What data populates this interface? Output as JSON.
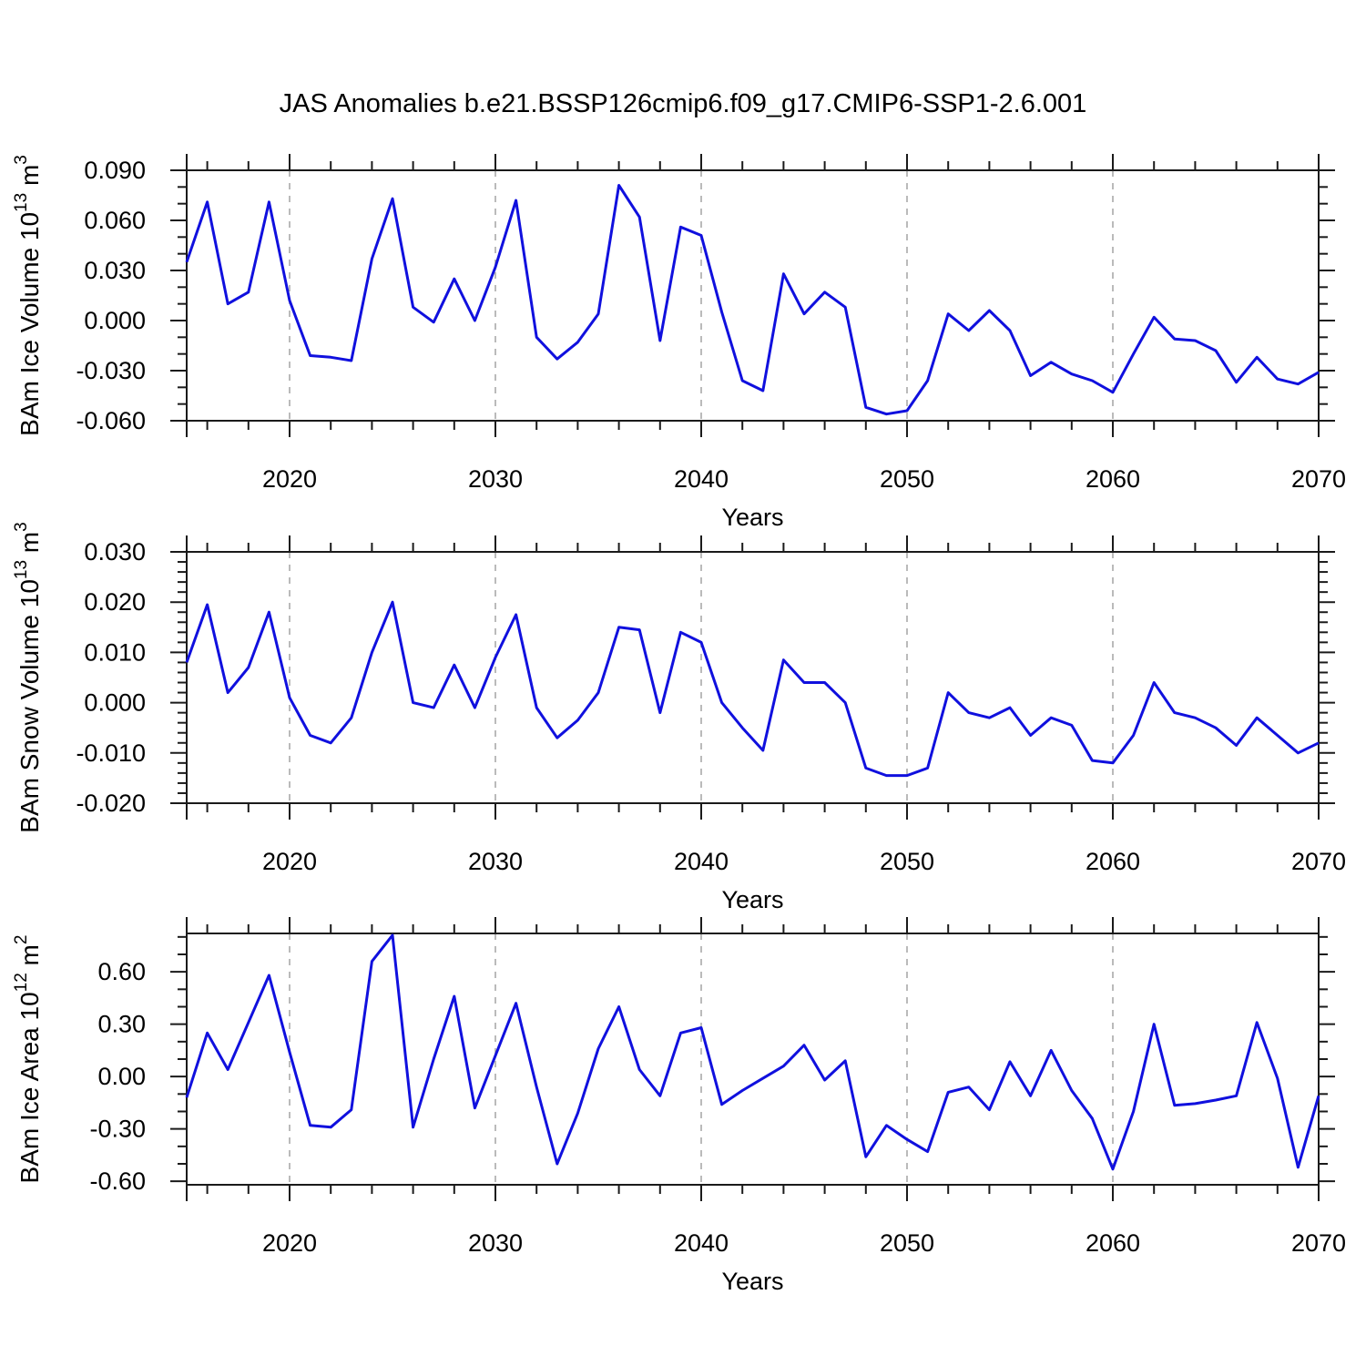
{
  "title": "JAS Anomalies b.e21.BSSP126cmip6.f09_g17.CMIP6-SSP1-2.6.001",
  "colors": {
    "line": "#1010de",
    "frame": "#1a1a1a",
    "grid": "#aaaaaa",
    "text": "#000000"
  },
  "x_axis": {
    "label": "Years",
    "year_start": 2015,
    "year_end": 2070,
    "major_ticks": [
      2020,
      2030,
      2040,
      2050,
      2060,
      2070
    ],
    "minor_step_years": 2,
    "gridline_years": [
      2020,
      2030,
      2040,
      2050,
      2060
    ],
    "years": [
      2015,
      2016,
      2017,
      2018,
      2019,
      2020,
      2021,
      2022,
      2023,
      2024,
      2025,
      2026,
      2027,
      2028,
      2029,
      2030,
      2031,
      2032,
      2033,
      2034,
      2035,
      2036,
      2037,
      2038,
      2039,
      2040,
      2041,
      2042,
      2043,
      2044,
      2045,
      2046,
      2047,
      2048,
      2049,
      2050,
      2051,
      2052,
      2053,
      2054,
      2055,
      2056,
      2057,
      2058,
      2059,
      2060,
      2061,
      2062,
      2063,
      2064,
      2065,
      2066,
      2067,
      2068,
      2069,
      2070
    ]
  },
  "chart_data": [
    {
      "type": "line",
      "id": "bam-ice-volume",
      "ylabel_text": "BAm Ice Volume 10^13 m^3",
      "ylabel_parts": {
        "base": "BAm Ice Volume 10",
        "sup1": "13",
        "mid": " m",
        "sup2": "3"
      },
      "ylim": [
        -0.06,
        0.09
      ],
      "yminor_step": 0.01,
      "yticks": [
        {
          "v": 0.09,
          "label": "0.090"
        },
        {
          "v": 0.06,
          "label": "0.060"
        },
        {
          "v": 0.03,
          "label": "0.030"
        },
        {
          "v": 0.0,
          "label": "0.000"
        },
        {
          "v": -0.03,
          "label": "-0.030"
        },
        {
          "v": -0.06,
          "label": "-0.060"
        }
      ],
      "values": [
        0.035,
        0.071,
        0.01,
        0.017,
        0.071,
        0.012,
        -0.021,
        -0.022,
        -0.024,
        0.037,
        0.073,
        0.008,
        -0.001,
        0.025,
        0.0,
        0.032,
        0.072,
        -0.01,
        -0.023,
        -0.013,
        0.004,
        0.081,
        0.062,
        -0.012,
        0.056,
        0.051,
        0.005,
        -0.036,
        -0.042,
        0.028,
        0.004,
        0.017,
        0.008,
        -0.052,
        -0.056,
        -0.054,
        -0.036,
        0.004,
        -0.006,
        0.006,
        -0.006,
        -0.033,
        -0.025,
        -0.032,
        -0.036,
        -0.043,
        -0.02,
        0.002,
        -0.011,
        -0.012,
        -0.018,
        -0.037,
        -0.022,
        -0.035,
        -0.038,
        -0.031
      ]
    },
    {
      "type": "line",
      "id": "bam-snow-volume",
      "ylabel_text": "BAm Snow Volume 10^13 m^3",
      "ylabel_parts": {
        "base": "BAm Snow Volume 10",
        "sup1": "13",
        "mid": " m",
        "sup2": "3"
      },
      "ylim": [
        -0.02,
        0.03
      ],
      "yminor_step": 0.002,
      "yticks": [
        {
          "v": 0.03,
          "label": "0.030"
        },
        {
          "v": 0.02,
          "label": "0.020"
        },
        {
          "v": 0.01,
          "label": "0.010"
        },
        {
          "v": 0.0,
          "label": "0.000"
        },
        {
          "v": -0.01,
          "label": "-0.010"
        },
        {
          "v": -0.02,
          "label": "-0.020"
        }
      ],
      "values": [
        0.008,
        0.0195,
        0.002,
        0.007,
        0.018,
        0.001,
        -0.0065,
        -0.008,
        -0.003,
        0.01,
        0.02,
        0.0,
        -0.001,
        0.0075,
        -0.001,
        0.009,
        0.0175,
        -0.001,
        -0.007,
        -0.0035,
        0.002,
        0.015,
        0.0145,
        -0.002,
        0.014,
        0.012,
        0.0,
        -0.005,
        -0.0095,
        0.0085,
        0.004,
        0.004,
        0.0,
        -0.013,
        -0.0145,
        -0.0145,
        -0.013,
        0.002,
        -0.002,
        -0.003,
        -0.001,
        -0.0065,
        -0.003,
        -0.0045,
        -0.0115,
        -0.012,
        -0.0065,
        0.004,
        -0.002,
        -0.003,
        -0.005,
        -0.0085,
        -0.003,
        -0.0065,
        -0.01,
        -0.008
      ]
    },
    {
      "type": "line",
      "id": "bam-ice-area",
      "ylabel_text": "BAm Ice Area 10^12 m^2",
      "ylabel_parts": {
        "base": "BAm Ice Area 10",
        "sup1": "12",
        "mid": " m",
        "sup2": "2"
      },
      "ylim": [
        -0.62,
        0.82
      ],
      "yminor_step": 0.1,
      "yticks": [
        {
          "v": 0.6,
          "label": "0.60"
        },
        {
          "v": 0.3,
          "label": "0.30"
        },
        {
          "v": 0.0,
          "label": "0.00"
        },
        {
          "v": -0.3,
          "label": "-0.30"
        },
        {
          "v": -0.6,
          "label": "-0.60"
        }
      ],
      "values": [
        -0.12,
        0.25,
        0.04,
        0.31,
        0.58,
        0.14,
        -0.28,
        -0.29,
        -0.19,
        0.66,
        0.81,
        -0.29,
        0.1,
        0.46,
        -0.18,
        0.12,
        0.42,
        -0.06,
        -0.5,
        -0.21,
        0.16,
        0.4,
        0.04,
        -0.11,
        0.25,
        0.28,
        -0.16,
        -0.08,
        -0.01,
        0.06,
        0.18,
        -0.02,
        0.09,
        -0.46,
        -0.28,
        -0.36,
        -0.43,
        -0.09,
        -0.06,
        -0.19,
        0.085,
        -0.11,
        0.15,
        -0.08,
        -0.24,
        -0.53,
        -0.2,
        0.3,
        -0.165,
        -0.155,
        -0.135,
        -0.11,
        0.31,
        -0.01,
        -0.52,
        -0.11
      ]
    }
  ]
}
